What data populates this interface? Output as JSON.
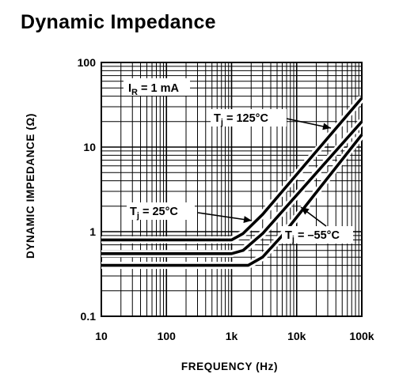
{
  "title": "Dynamic Impedance",
  "chart_data": {
    "type": "line",
    "title": "Dynamic Impedance",
    "xlabel": "FREQUENCY (Hz)",
    "ylabel": "DYNAMIC IMPEDANCE (Ω)",
    "xscale": "log",
    "yscale": "log",
    "xlim": [
      10,
      100000
    ],
    "ylim": [
      0.1,
      100
    ],
    "x_ticks": [
      {
        "value": 10,
        "label": "10"
      },
      {
        "value": 100,
        "label": "100"
      },
      {
        "value": 1000,
        "label": "1k"
      },
      {
        "value": 10000,
        "label": "10k"
      },
      {
        "value": 100000,
        "label": "100k"
      }
    ],
    "y_ticks": [
      {
        "value": 0.1,
        "label": "0.1"
      },
      {
        "value": 1,
        "label": "1"
      },
      {
        "value": 10,
        "label": "10"
      },
      {
        "value": 100,
        "label": "100"
      }
    ],
    "grid": true,
    "condition": {
      "symbol": "I",
      "subscript": "R",
      "text": " = 1 mA"
    },
    "series": [
      {
        "name": "Tj = 125°C",
        "label_main": "T",
        "label_sub": "j",
        "label_rest": " = 125°C",
        "x": [
          10,
          1000,
          1500,
          3000,
          100000
        ],
        "y": [
          0.8,
          0.8,
          0.95,
          1.6,
          38
        ]
      },
      {
        "name": "Tj = 25°C",
        "label_main": "T",
        "label_sub": "j",
        "label_rest": " = 25°C",
        "x": [
          10,
          1000,
          1500,
          3000,
          100000
        ],
        "y": [
          0.55,
          0.55,
          0.6,
          0.95,
          20
        ]
      },
      {
        "name": "Tj = –55°C",
        "label_main": "T",
        "label_sub": "j",
        "label_rest": " = –55°C",
        "x": [
          10,
          1800,
          3000,
          6000,
          100000
        ],
        "y": [
          0.4,
          0.4,
          0.5,
          0.9,
          14
        ]
      }
    ]
  }
}
